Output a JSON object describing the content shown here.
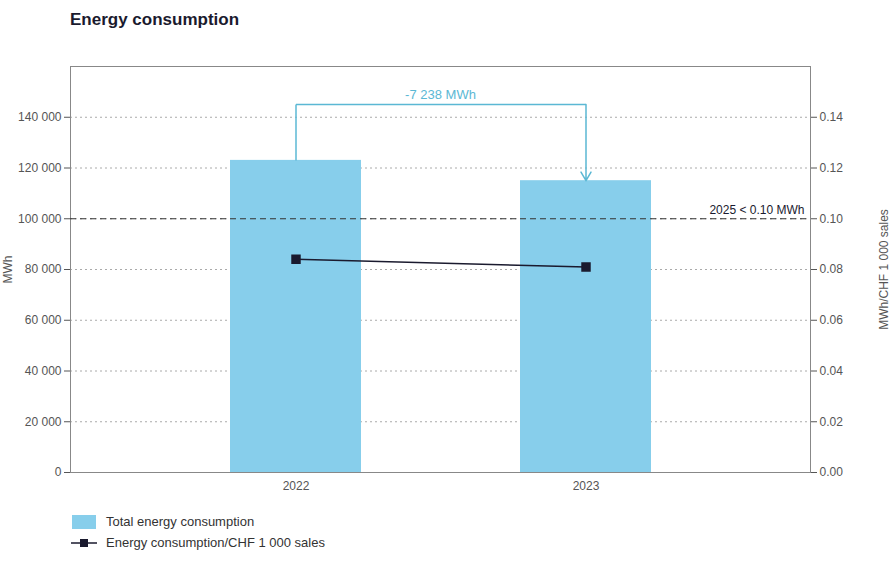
{
  "chart_data": {
    "type": "bar",
    "title": "Energy consumption",
    "categories": [
      "2022",
      "2023"
    ],
    "series": [
      {
        "name": "Total energy consumption",
        "type": "bar",
        "color": "#87CEEB",
        "values": [
          123000,
          115000
        ]
      },
      {
        "name": "Energy consumption/CHF 1 000 sales",
        "type": "line",
        "axis": "y2",
        "color": "#1a1a2e",
        "marker": "square",
        "values": [
          0.084,
          0.081
        ]
      }
    ],
    "ylabel": "MWh",
    "y2label": "MWh/CHF 1 000 sales",
    "ylim": [
      0,
      160000
    ],
    "yticks": [
      0,
      {
        "value": 20000,
        "label": "20 000"
      },
      {
        "value": 40000,
        "label": "40 000"
      },
      {
        "value": 60000,
        "label": "60 000"
      },
      {
        "value": 80000,
        "label": "80 000"
      },
      {
        "value": 100000,
        "label": "100 000"
      },
      {
        "value": 120000,
        "label": "120 000"
      },
      {
        "value": 140000,
        "label": "140 000"
      }
    ],
    "y2lim": [
      0,
      0.16
    ],
    "y2ticks": [
      {
        "value": 0,
        "label": "0.00"
      },
      {
        "value": 0.02,
        "label": "0.02"
      },
      {
        "value": 0.04,
        "label": "0.04"
      },
      {
        "value": 0.06,
        "label": "0.06"
      },
      {
        "value": 0.08,
        "label": "0.08"
      },
      {
        "value": 0.1,
        "label": "0.10"
      },
      {
        "value": 0.12,
        "label": "0.12"
      },
      {
        "value": 0.14,
        "label": "0.14"
      }
    ],
    "grid": true,
    "legend": "lower left",
    "annotations": [
      {
        "type": "bracket",
        "text": "-7 238 MWh",
        "color": "#5bb8d4",
        "from": "2022",
        "to": "2023",
        "y": 145000
      },
      {
        "type": "target",
        "text": "2025 < 0.10 MWh",
        "y2": 0.1,
        "line_style": "dashed"
      }
    ]
  }
}
